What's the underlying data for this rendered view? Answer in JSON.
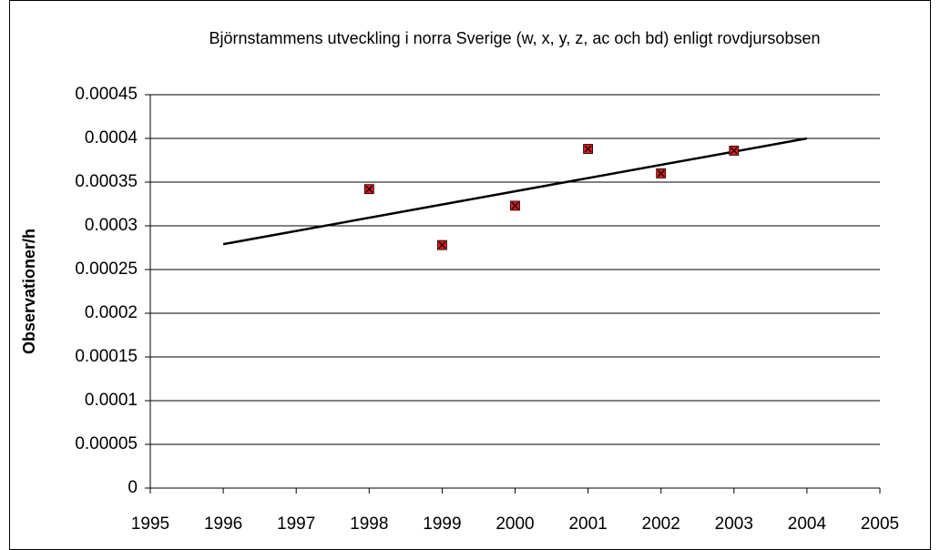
{
  "chart_data": {
    "type": "scatter",
    "title": "Björnstammens utveckling i norra Sverige (w, x, y, z, ac och bd) enligt rovdjursobsen",
    "y_label": "Observationer/h",
    "x": [
      1998,
      1999,
      2000,
      2001,
      2002,
      2003
    ],
    "series": [
      {
        "color": "#e31a1c",
        "values": [
          0.000342,
          0.000278,
          0.000323,
          0.000388,
          0.00036,
          0.000386
        ]
      }
    ],
    "trendline": {
      "color": "#000000",
      "x": [
        1996,
        2004
      ],
      "values": [
        0.000279,
        0.0004
      ]
    },
    "xlim": [
      1995,
      2005
    ],
    "xticks": [
      1995,
      1996,
      1997,
      1998,
      1999,
      2000,
      2001,
      2002,
      2003,
      2004,
      2005
    ],
    "ylim": [
      0,
      0.00045
    ],
    "yticks": [
      0,
      5e-05,
      0.0001,
      0.00015,
      0.0002,
      0.00025,
      0.0003,
      0.00035,
      0.0004,
      0.00045
    ],
    "grid": true
  }
}
